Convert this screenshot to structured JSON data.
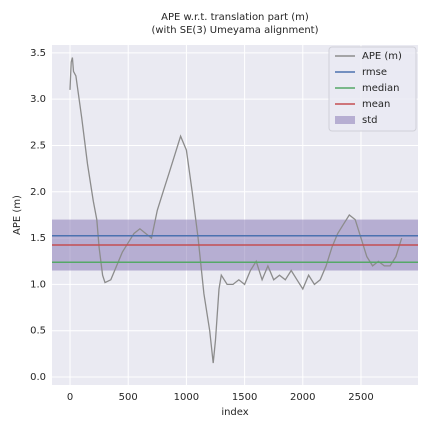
{
  "chart_data": {
    "type": "line",
    "title": "APE w.r.t. translation part (m)",
    "subtitle": "(with SE(3) Umeyama alignment)",
    "x_label": "index",
    "y_label": "APE (m)",
    "xlim": [
      -155,
      2990
    ],
    "ylim": [
      -0.086,
      3.585
    ],
    "xticks": [
      0,
      500,
      1000,
      1500,
      2000,
      2500
    ],
    "yticks": [
      {
        "value": 0,
        "label": "0.0"
      },
      0.5,
      {
        "value": 1,
        "label": "1.0"
      },
      1.5,
      {
        "value": 2,
        "label": "2.0"
      },
      2.5,
      {
        "value": 3,
        "label": "3.0"
      },
      3.5
    ],
    "grid": true,
    "legend": "upper right",
    "series": [
      {
        "name": "APE (m)",
        "color": "#8c8c8c",
        "x": [
          0,
          10,
          20,
          30,
          50,
          100,
          150,
          200,
          230,
          250,
          280,
          300,
          350,
          400,
          450,
          500,
          550,
          600,
          650,
          700,
          750,
          800,
          850,
          900,
          950,
          1000,
          1050,
          1100,
          1150,
          1200,
          1230,
          1250,
          1280,
          1300,
          1350,
          1400,
          1450,
          1500,
          1550,
          1600,
          1650,
          1700,
          1750,
          1800,
          1850,
          1900,
          1950,
          2000,
          2050,
          2100,
          2150,
          2200,
          2250,
          2300,
          2350,
          2400,
          2450,
          2500,
          2550,
          2600,
          2650,
          2700,
          2750,
          2800,
          2850
        ],
        "values": [
          3.1,
          3.4,
          3.45,
          3.3,
          3.25,
          2.8,
          2.3,
          1.9,
          1.7,
          1.4,
          1.1,
          1.02,
          1.05,
          1.2,
          1.35,
          1.45,
          1.55,
          1.6,
          1.55,
          1.5,
          1.8,
          2.0,
          2.2,
          2.4,
          2.6,
          2.45,
          2.0,
          1.5,
          0.9,
          0.5,
          0.15,
          0.4,
          0.95,
          1.1,
          1.0,
          1.0,
          1.05,
          1.0,
          1.15,
          1.25,
          1.05,
          1.2,
          1.05,
          1.1,
          1.05,
          1.15,
          1.05,
          0.95,
          1.1,
          1.0,
          1.05,
          1.2,
          1.4,
          1.55,
          1.65,
          1.75,
          1.7,
          1.5,
          1.3,
          1.2,
          1.25,
          1.2,
          1.2,
          1.3,
          1.5
        ]
      }
    ],
    "reference_lines": [
      {
        "name": "rmse",
        "color": "#4c72b0",
        "value": 1.525
      },
      {
        "name": "median",
        "color": "#55a868",
        "value": 1.24
      },
      {
        "name": "mean",
        "color": "#c44e52",
        "value": 1.425
      }
    ],
    "std_band": {
      "name": "std",
      "color": "#8172b2",
      "value": 0.275
    }
  }
}
